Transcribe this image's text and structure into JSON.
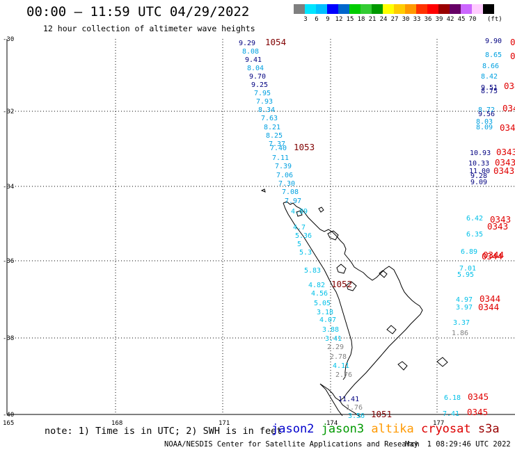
{
  "header": {
    "title": "00:00 — 11:59 UTC 04/29/2022",
    "subtitle": "12 hour collection of altimeter wave heights"
  },
  "colorbar": {
    "unit": "(ft)",
    "bins": [
      {
        "label": "",
        "color": "#7f7f7f"
      },
      {
        "label": "3",
        "color": "#00e5ff"
      },
      {
        "label": "6",
        "color": "#00bfff"
      },
      {
        "label": "9",
        "color": "#0000ff"
      },
      {
        "label": "12",
        "color": "#0066cc"
      },
      {
        "label": "15",
        "color": "#00cc00"
      },
      {
        "label": "18",
        "color": "#33cc33"
      },
      {
        "label": "21",
        "color": "#009900"
      },
      {
        "label": "24",
        "color": "#ffff00"
      },
      {
        "label": "27",
        "color": "#ffcc00"
      },
      {
        "label": "30",
        "color": "#ff9900"
      },
      {
        "label": "33",
        "color": "#ff3300"
      },
      {
        "label": "36",
        "color": "#ff0000"
      },
      {
        "label": "39",
        "color": "#990000"
      },
      {
        "label": "42",
        "color": "#660066"
      },
      {
        "label": "45",
        "color": "#cc66ff"
      },
      {
        "label": "70",
        "color": "#ffccff"
      },
      {
        "label": "",
        "color": "#000000"
      }
    ]
  },
  "map": {
    "lat_labels": [
      "-30",
      "-32",
      "-34",
      "-36",
      "-38",
      "-40"
    ],
    "lon_labels": [
      "165",
      "168",
      "171",
      "174",
      "177"
    ]
  },
  "tracks": [
    {
      "pass": "1054",
      "pass_color": "#800000",
      "points": [
        {
          "v": "9.29",
          "c": "#000080"
        },
        {
          "v": "8.08",
          "c": "#00a0e0"
        },
        {
          "v": "9.41",
          "c": "#000080"
        },
        {
          "v": "8.04",
          "c": "#00a0e0"
        },
        {
          "v": "9.70",
          "c": "#000080"
        },
        {
          "v": "9.25",
          "c": "#000080"
        },
        {
          "v": "7.95",
          "c": "#00a0e0"
        },
        {
          "v": "7.93",
          "c": "#00a0e0"
        },
        {
          "v": "8.34",
          "c": "#00a0e0"
        },
        {
          "v": "7.63",
          "c": "#00a0e0"
        },
        {
          "v": "8.21",
          "c": "#00a0e0"
        },
        {
          "v": "8.25",
          "c": "#00a0e0"
        },
        {
          "v": "7.37",
          "c": "#00a0e0"
        },
        {
          "v": "7.40",
          "c": "#00a0e0"
        },
        {
          "v": "7.11",
          "c": "#00a0e0"
        },
        {
          "v": "7.39",
          "c": "#00a0e0"
        },
        {
          "v": "7.06",
          "c": "#00a0e0"
        },
        {
          "v": "7.30",
          "c": "#00a0e0"
        },
        {
          "v": "7.08",
          "c": "#00a0e0"
        },
        {
          "v": "7.97",
          "c": "#00a0e0"
        }
      ]
    },
    {
      "pass": "1053",
      "pass_color": "#800000",
      "points": []
    },
    {
      "pass": "1052",
      "pass_color": "#800000",
      "points": [
        {
          "v": "4.89",
          "c": "#00c0e8"
        },
        {
          "v": "4.7",
          "c": "#00c0e8"
        },
        {
          "v": "5.36",
          "c": "#00c0e8"
        },
        {
          "v": "5",
          "c": "#00c0e8"
        },
        {
          "v": "5.3",
          "c": "#00c0e8"
        },
        {
          "v": "5.83",
          "c": "#00c0e8"
        },
        {
          "v": "4.82",
          "c": "#00c0e8"
        },
        {
          "v": "4.56",
          "c": "#00c0e8"
        },
        {
          "v": "5.05",
          "c": "#00c0e8"
        },
        {
          "v": "3.18",
          "c": "#00c0e8"
        },
        {
          "v": "4.07",
          "c": "#00c0e8"
        },
        {
          "v": "3.88",
          "c": "#00c0e8"
        },
        {
          "v": "3.41",
          "c": "#00c0e8"
        },
        {
          "v": "2.29",
          "c": "#808080"
        },
        {
          "v": "2.78",
          "c": "#808080"
        },
        {
          "v": "4.11",
          "c": "#00c0e8"
        },
        {
          "v": "2.76",
          "c": "#808080"
        }
      ]
    },
    {
      "pass": "1051",
      "pass_color": "#800000",
      "points": [
        {
          "v": "11.41",
          "c": "#000080"
        },
        {
          "v": "1.76",
          "c": "#808080"
        },
        {
          "v": "3.56",
          "c": "#00c0e8"
        }
      ]
    },
    {
      "pass": "0343",
      "pass_color": "#e00000",
      "points": [
        {
          "v": "9.90",
          "c": "#000080"
        },
        {
          "v": "8.65",
          "c": "#00a0e0"
        },
        {
          "v": "8.66",
          "c": "#00a0e0"
        },
        {
          "v": "8.42",
          "c": "#00a0e0"
        },
        {
          "v": "9.51",
          "c": "#000080"
        },
        {
          "v": "8.75",
          "c": "#000080"
        },
        {
          "v": "8.72",
          "c": "#00a0e0"
        },
        {
          "v": "9.56",
          "c": "#000080"
        },
        {
          "v": "8.03",
          "c": "#00a0e0"
        },
        {
          "v": "8.09",
          "c": "#00a0e0"
        },
        {
          "v": "10.93",
          "c": "#000080"
        },
        {
          "v": "10.33",
          "c": "#000080"
        },
        {
          "v": "11.00",
          "c": "#000080"
        },
        {
          "v": "9.28",
          "c": "#000080"
        },
        {
          "v": "9.09",
          "c": "#000080"
        },
        {
          "v": "6.42",
          "c": "#00c0e8"
        },
        {
          "v": "6.35",
          "c": "#00c0e8"
        }
      ]
    },
    {
      "pass": "0344",
      "pass_color": "#e00000",
      "points": [
        {
          "v": "6.89",
          "c": "#00c0e8"
        },
        {
          "v": "7.01",
          "c": "#00c0e8"
        },
        {
          "v": "5.95",
          "c": "#00c0e8"
        },
        {
          "v": "4.97",
          "c": "#00c0e8"
        },
        {
          "v": "3.97",
          "c": "#00c0e8"
        },
        {
          "v": "3.37",
          "c": "#00c0e8"
        },
        {
          "v": "1.86",
          "c": "#808080"
        }
      ]
    },
    {
      "pass": "0345",
      "pass_color": "#e00000",
      "points": [
        {
          "v": "6.18",
          "c": "#00c0e8"
        },
        {
          "v": "7.41",
          "c": "#00c0e8"
        }
      ]
    }
  ],
  "legend": {
    "note": "note: 1) Time is in UTC; 2) SWH is in feet",
    "satellites": [
      {
        "name": "jason2",
        "color": "#0000cc"
      },
      {
        "name": "jason3",
        "color": "#009900"
      },
      {
        "name": "altika",
        "color": "#ff9900"
      },
      {
        "name": "cryosat",
        "color": "#dd0000"
      },
      {
        "name": "s3a",
        "color": "#990000"
      }
    ]
  },
  "footer": {
    "credit": "NOAA/NESDIS Center for Satellite Applications and Research",
    "timestamp": "May  1 08:29:46 UTC 2022"
  }
}
